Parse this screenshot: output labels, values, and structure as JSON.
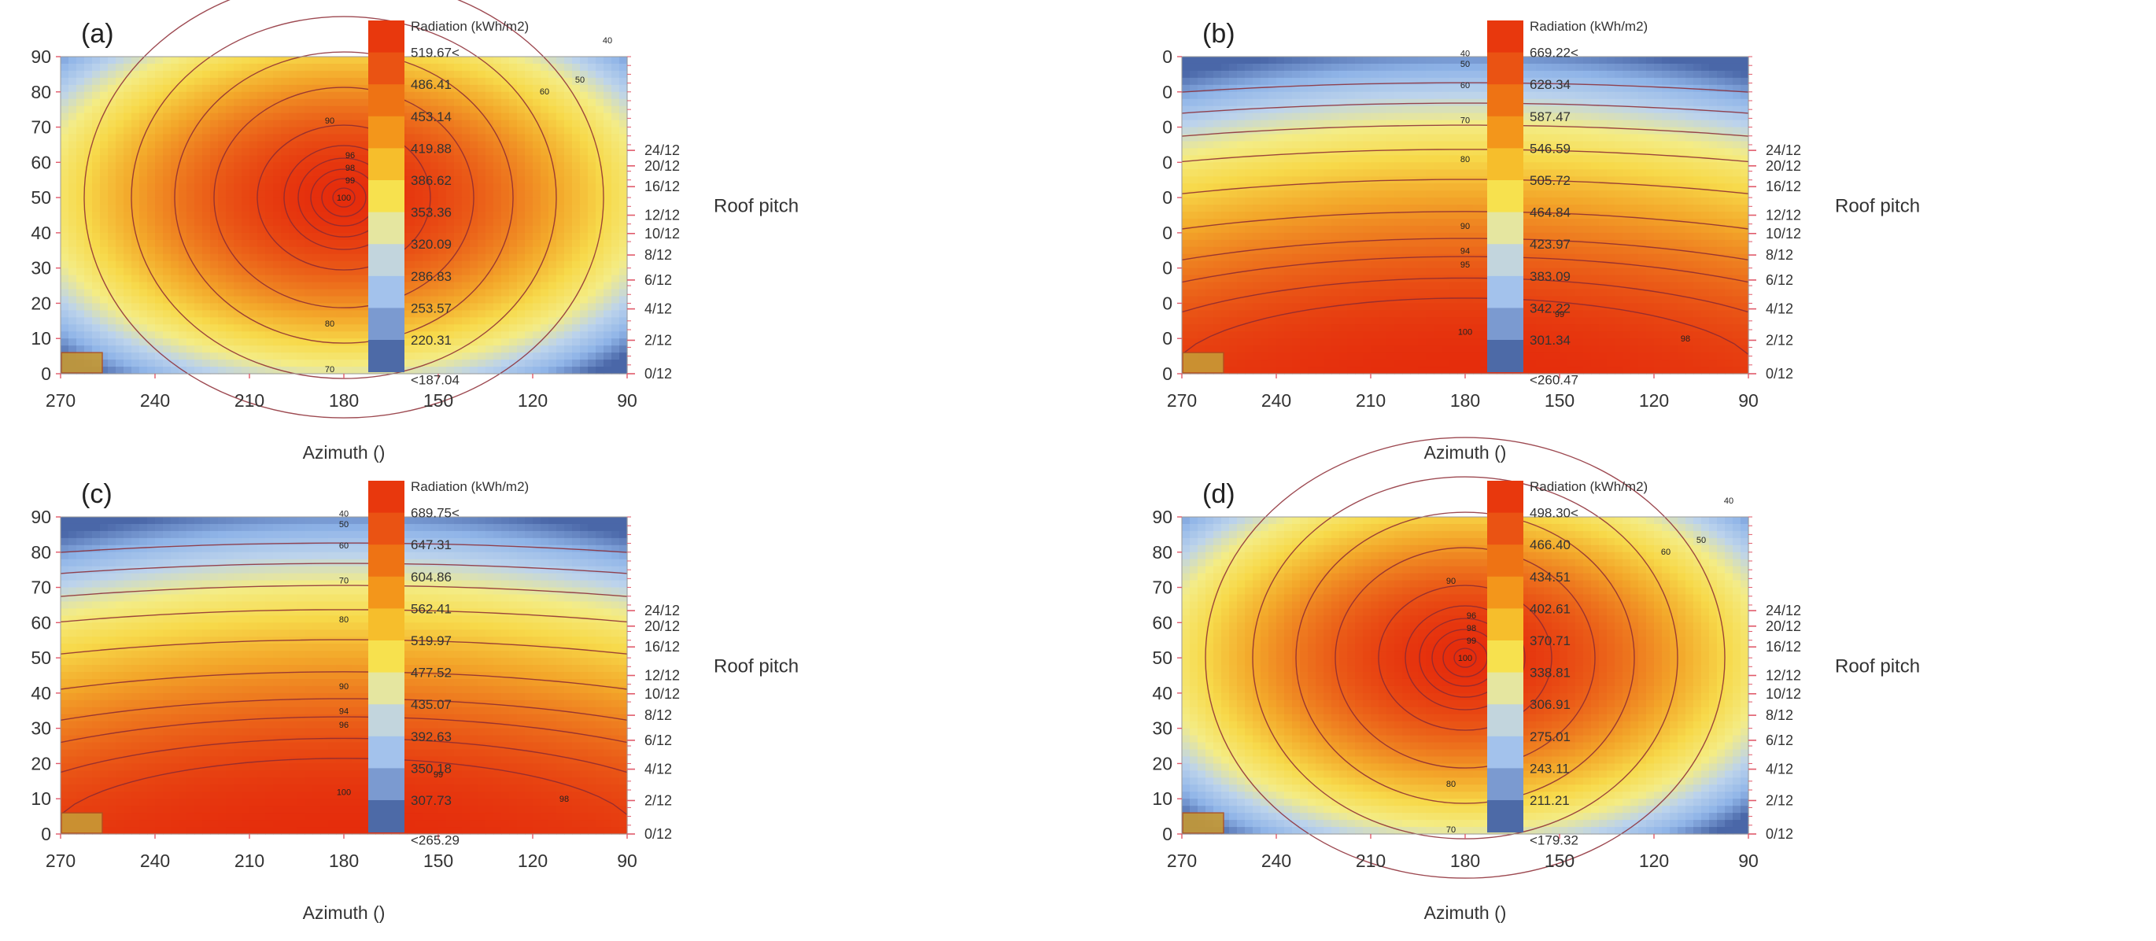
{
  "figure": {
    "shared": {
      "xlabel": "Azimuth ()",
      "x_ticks": [
        "270",
        "240",
        "210",
        "180",
        "150",
        "120",
        "90"
      ],
      "xlim": [
        270,
        90
      ],
      "ylim": [
        0,
        90
      ],
      "pitch_label": "Roof pitch",
      "pitch_ticks": [
        {
          "label": "24/12",
          "deg": 63.4
        },
        {
          "label": "20/12",
          "deg": 59.0
        },
        {
          "label": "16/12",
          "deg": 53.1
        },
        {
          "label": "12/12",
          "deg": 45.0
        },
        {
          "label": "10/12",
          "deg": 39.8
        },
        {
          "label": "8/12",
          "deg": 33.7
        },
        {
          "label": "6/12",
          "deg": 26.6
        },
        {
          "label": "4/12",
          "deg": 18.4
        },
        {
          "label": "2/12",
          "deg": 9.5
        },
        {
          "label": "0/12",
          "deg": 0
        }
      ],
      "legend_title": "Radiation (kWh/m2)",
      "colors": {
        "band_colors": [
          "#e8380d",
          "#ea5313",
          "#ee7314",
          "#f3961b",
          "#f6be2c",
          "#f7e14e",
          "#e5e6a0",
          "#c2d5dd",
          "#a3c2ec",
          "#7b9ad0",
          "#4d6aa7"
        ],
        "ramp": [
          "#4a67a8",
          "#8fb4e8",
          "#bcd3ec",
          "#f4ec85",
          "#f7d94a",
          "#f3a72a",
          "#ec6a1b",
          "#e52d0c"
        ],
        "contour_line": "#8c2a33",
        "pitch_tick": "#e05a6a",
        "marker_fill": "#c79a35",
        "marker_stroke": "#b05020"
      }
    },
    "panels": [
      {
        "label": "(a)",
        "y_ticks": [
          "0",
          "10",
          "20",
          "30",
          "40",
          "50",
          "60",
          "70",
          "80",
          "90"
        ],
        "legend_values": [
          "519.67<",
          "486.41",
          "453.14",
          "419.88",
          "386.62",
          "353.36",
          "320.09",
          "286.83",
          "253.57",
          "220.31",
          "<187.04"
        ],
        "contour_labels": [
          "100",
          "99",
          "98",
          "96",
          "94",
          "90",
          "80",
          "70",
          "60",
          "50",
          "40"
        ]
      },
      {
        "label": "(b)",
        "y_ticks": [
          "0",
          "0",
          "0",
          "0",
          "0",
          "0",
          "0",
          "0",
          "0",
          "0"
        ],
        "legend_values": [
          "669.22<",
          "628.34",
          "587.47",
          "546.59",
          "505.72",
          "464.84",
          "423.97",
          "383.09",
          "342.22",
          "301.34",
          "<260.47"
        ],
        "contour_labels": [
          "100",
          "99",
          "98",
          "95",
          "94",
          "90",
          "80",
          "70",
          "60",
          "50",
          "40"
        ]
      },
      {
        "label": "(c)",
        "y_ticks": [
          "0",
          "10",
          "20",
          "30",
          "40",
          "50",
          "60",
          "70",
          "80",
          "90"
        ],
        "legend_values": [
          "689.75<",
          "647.31",
          "604.86",
          "562.41",
          "519.97",
          "477.52",
          "435.07",
          "392.63",
          "350.18",
          "307.73",
          "<265.29"
        ],
        "contour_labels": [
          "100",
          "99",
          "98",
          "96",
          "94",
          "90",
          "80",
          "70",
          "60",
          "50",
          "40"
        ]
      },
      {
        "label": "(d)",
        "y_ticks": [
          "0",
          "10",
          "20",
          "30",
          "40",
          "50",
          "60",
          "70",
          "80",
          "90"
        ],
        "legend_values": [
          "498.30<",
          "466.40",
          "434.51",
          "402.61",
          "370.71",
          "338.81",
          "306.91",
          "275.01",
          "243.11",
          "211.21",
          "<179.32"
        ],
        "contour_labels": [
          "100",
          "99",
          "98",
          "96",
          "94",
          "90",
          "80",
          "70",
          "60",
          "50",
          "40"
        ]
      }
    ]
  },
  "chart_data": [
    {
      "type": "heatmap",
      "title": "(a)",
      "xlabel": "Azimuth ()",
      "ylabel": "",
      "xlim": [
        270,
        90
      ],
      "ylim": [
        0,
        90
      ],
      "colorbar_title": "Radiation (kWh/m2)",
      "colorbar_range": [
        187.04,
        519.67
      ],
      "peak": {
        "azimuth": 180,
        "tilt": 50,
        "percent": 100
      },
      "contour_levels_percent": [
        100,
        99,
        98,
        96,
        94,
        90,
        80,
        70,
        60,
        50,
        40
      ]
    },
    {
      "type": "heatmap",
      "title": "(b)",
      "xlabel": "Azimuth ()",
      "ylabel": "",
      "xlim": [
        270,
        90
      ],
      "ylim": [
        0,
        90
      ],
      "colorbar_title": "Radiation (kWh/m2)",
      "colorbar_range": [
        260.47,
        669.22
      ],
      "peak": {
        "azimuth": 180,
        "tilt": 12,
        "percent": 100
      },
      "contour_levels_percent": [
        100,
        99,
        98,
        95,
        94,
        90,
        80,
        70,
        60,
        50,
        40
      ]
    },
    {
      "type": "heatmap",
      "title": "(c)",
      "xlabel": "Azimuth ()",
      "ylabel": "",
      "xlim": [
        270,
        90
      ],
      "ylim": [
        0,
        90
      ],
      "colorbar_title": "Radiation (kWh/m2)",
      "colorbar_range": [
        265.29,
        689.75
      ],
      "peak": {
        "azimuth": 180,
        "tilt": 12,
        "percent": 100
      },
      "contour_levels_percent": [
        100,
        99,
        98,
        96,
        94,
        90,
        80,
        70,
        60,
        50,
        40
      ]
    },
    {
      "type": "heatmap",
      "title": "(d)",
      "xlabel": "Azimuth ()",
      "ylabel": "",
      "xlim": [
        270,
        90
      ],
      "ylim": [
        0,
        90
      ],
      "colorbar_title": "Radiation (kWh/m2)",
      "colorbar_range": [
        179.32,
        498.3
      ],
      "peak": {
        "azimuth": 180,
        "tilt": 50,
        "percent": 100
      },
      "contour_levels_percent": [
        100,
        99,
        98,
        96,
        94,
        90,
        80,
        70,
        60,
        50,
        40
      ]
    }
  ]
}
